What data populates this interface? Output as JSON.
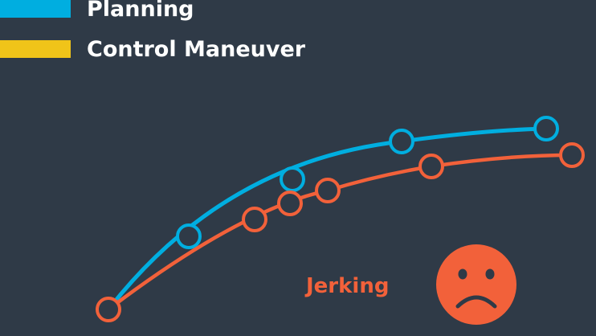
{
  "legend": [
    {
      "label": "Planning",
      "color": "#00aee0"
    },
    {
      "label": "Control Maneuver",
      "color": "#f0c419"
    }
  ],
  "annotation": {
    "text": "Jerking",
    "color": "#f2613a"
  },
  "face": {
    "expression": "sad-face",
    "color": "#f2613a",
    "feature_color": "#2f3a47"
  },
  "curves": {
    "planned": {
      "color": "#00aee0"
    },
    "actual": {
      "color": "#f2613a"
    }
  }
}
